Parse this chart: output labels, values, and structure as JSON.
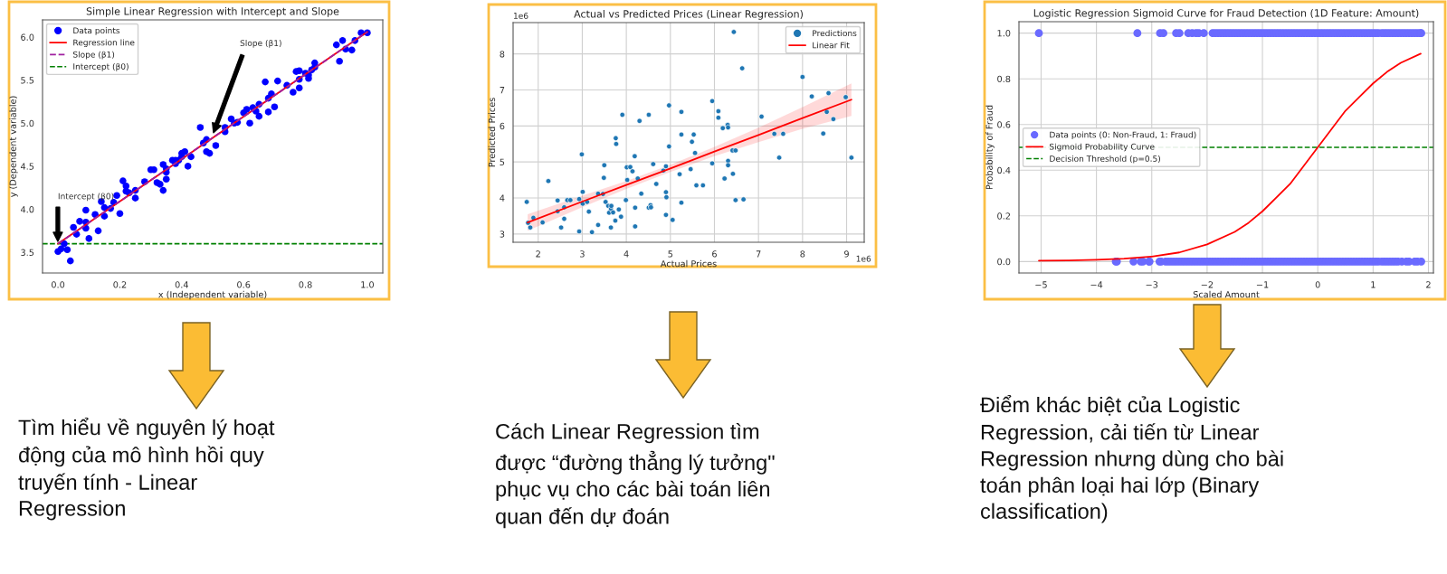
{
  "chart_data": [
    {
      "type": "scatter",
      "title": "Simple Linear Regression with Intercept and Slope",
      "xlabel": "x (Independent variable)",
      "ylabel": "y (Dependent variable)",
      "xlim": [
        -0.05,
        1.05
      ],
      "ylim": [
        3.26,
        6.2
      ],
      "xticks": [
        {
          "value": 0,
          "label": "0.0"
        },
        0.2,
        0.4,
        0.6,
        0.8,
        {
          "value": 1,
          "label": "1.0"
        }
      ],
      "yticks": [
        3.5,
        {
          "value": 4,
          "label": "4.0"
        },
        4.5,
        {
          "value": 5,
          "label": "5.0"
        },
        5.5,
        {
          "value": 6,
          "label": "6.0"
        }
      ],
      "grid": false,
      "legend": "top left",
      "series": [
        {
          "name": "Data points",
          "type": "scatter",
          "marker": "circle",
          "color": "#0000ff",
          "x": [
            0.0,
            0.01,
            0.02,
            0.03,
            0.04,
            0.05,
            0.06,
            0.07,
            0.09,
            0.09,
            0.09,
            0.1,
            0.12,
            0.13,
            0.14,
            0.15,
            0.15,
            0.17,
            0.18,
            0.19,
            0.2,
            0.21,
            0.22,
            0.22,
            0.23,
            0.25,
            0.25,
            0.28,
            0.3,
            0.31,
            0.32,
            0.33,
            0.34,
            0.34,
            0.35,
            0.35,
            0.35,
            0.37,
            0.38,
            0.38,
            0.39,
            0.4,
            0.41,
            0.4,
            0.42,
            0.43,
            0.46,
            0.47,
            0.48,
            0.48,
            0.49,
            0.51,
            0.54,
            0.54,
            0.56,
            0.57,
            0.58,
            0.6,
            0.61,
            0.62,
            0.63,
            0.64,
            0.65,
            0.65,
            0.67,
            0.68,
            0.68,
            0.69,
            0.7,
            0.71,
            0.74,
            0.76,
            0.77,
            0.78,
            0.78,
            0.78,
            0.8,
            0.81,
            0.81,
            0.82,
            0.83,
            0.83,
            0.9,
            0.91,
            0.92,
            0.93,
            0.95,
            0.96,
            0.98,
            1.0
          ],
          "values": [
            3.51,
            3.54,
            3.6,
            3.53,
            3.4,
            3.79,
            3.71,
            3.86,
            3.85,
            3.78,
            3.99,
            3.66,
            3.94,
            3.75,
            4.09,
            3.92,
            4.02,
            4.01,
            4.08,
            4.16,
            3.95,
            4.33,
            4.27,
            4.21,
            4.19,
            4.22,
            4.13,
            4.32,
            4.46,
            4.46,
            4.31,
            4.29,
            4.22,
            4.52,
            4.43,
            4.47,
            4.35,
            4.57,
            4.57,
            4.53,
            4.57,
            4.65,
            4.67,
            4.61,
            4.5,
            4.61,
            4.95,
            4.77,
            4.81,
            4.67,
            4.65,
            4.74,
            4.9,
            4.95,
            5.05,
            5.0,
            5.01,
            5.12,
            5.16,
            5.0,
            5.18,
            5.14,
            5.22,
            5.08,
            5.48,
            5.13,
            5.29,
            5.34,
            5.19,
            5.49,
            5.44,
            5.36,
            5.6,
            5.61,
            5.51,
            5.41,
            5.58,
            5.56,
            5.52,
            5.62,
            5.65,
            5.7,
            5.91,
            5.72,
            5.96,
            5.86,
            5.85,
            5.96,
            6.05,
            6.05
          ]
        },
        {
          "name": "Regression line",
          "type": "line",
          "line_style": "solid",
          "color": "#ff0000",
          "x": [
            0.0,
            1.0
          ],
          "values": [
            3.6,
            6.06
          ]
        },
        {
          "name": "Slope (β1)",
          "type": "line",
          "line_style": "dashed",
          "color": "#a020a0",
          "x": [
            0.0,
            1.0
          ],
          "values": [
            3.6,
            6.06
          ]
        }
      ],
      "ref_lines": [
        {
          "axis": "y",
          "value": 3.6,
          "label": "Intercept (β0)",
          "color": "#008000",
          "line_style": "dashed"
        }
      ],
      "annotations": [
        "Intercept (β0)",
        "Slope (β1)"
      ]
    },
    {
      "type": "scatter",
      "title": "Actual vs Predicted Prices (Linear Regression)",
      "xlabel": "Actual Prices",
      "ylabel": "Predicted Prices",
      "xlim": [
        1.43,
        9.4
      ],
      "ylim": [
        2.77,
        8.87
      ],
      "xticks": [
        2,
        3,
        4,
        5,
        6,
        7,
        8,
        9
      ],
      "yticks": [
        3,
        4,
        5,
        6,
        7,
        8
      ],
      "grid": true,
      "legend": "top right",
      "series": [
        {
          "name": "Predictions",
          "type": "scatter",
          "marker": "circle",
          "color": "#1f77b4",
          "x": [
            1.74,
            1.77,
            1.82,
            1.89,
            2.1,
            2.23,
            2.44,
            2.44,
            2.52,
            2.59,
            2.59,
            2.66,
            2.73,
            2.93,
            2.93,
            2.99,
            3.01,
            3.01,
            3.11,
            3.15,
            3.22,
            3.36,
            3.36,
            3.47,
            3.49,
            3.5,
            3.53,
            3.59,
            3.61,
            3.65,
            3.65,
            3.66,
            3.7,
            3.75,
            3.76,
            3.77,
            3.83,
            3.88,
            3.91,
            3.99,
            4.01,
            4.02,
            4.09,
            4.14,
            4.19,
            4.2,
            4.2,
            4.26,
            4.3,
            4.34,
            4.51,
            4.51,
            4.55,
            4.56,
            4.61,
            4.68,
            4.84,
            4.9,
            4.9,
            4.91,
            4.9,
            4.97,
            4.97,
            5.05,
            5.21,
            5.25,
            5.25,
            5.25,
            5.46,
            5.49,
            5.53,
            5.56,
            5.59,
            5.74,
            5.95,
            5.95,
            6.09,
            6.09,
            6.19,
            6.23,
            6.3,
            6.31,
            6.31,
            6.31,
            6.41,
            6.42,
            6.44,
            6.48,
            6.48,
            6.63,
            6.66,
            7.07,
            7.36,
            7.47,
            7.56,
            8.0,
            8.21,
            8.47,
            8.55,
            8.59,
            8.7,
            8.98,
            9.11
          ],
          "values": [
            3.89,
            3.31,
            3.18,
            3.45,
            3.32,
            4.47,
            3.93,
            3.63,
            3.18,
            3.42,
            3.74,
            3.94,
            3.94,
            3.97,
            3.07,
            5.21,
            4.17,
            3.84,
            3.89,
            3.62,
            3.05,
            3.25,
            4.12,
            4.11,
            4.56,
            4.91,
            3.89,
            3.78,
            3.59,
            3.7,
            3.18,
            3.78,
            3.6,
            3.37,
            5.66,
            5.5,
            3.68,
            3.48,
            6.31,
            3.94,
            4.85,
            4.5,
            4.86,
            4.74,
            5.16,
            3.73,
            3.21,
            4.54,
            6.14,
            4.12,
            3.73,
            6.31,
            3.8,
            3.74,
            4.94,
            4.39,
            4.76,
            4.88,
            4.16,
            4.02,
            3.53,
            6.57,
            5.43,
            3.39,
            4.66,
            6.39,
            5.76,
            3.87,
            4.8,
            5.56,
            5.76,
            5.25,
            4.35,
            4.35,
            6.69,
            4.96,
            6.41,
            6.23,
            5.94,
            4.54,
            6.03,
            5.96,
            5.03,
            4.91,
            5.32,
            4.67,
            8.61,
            5.32,
            3.94,
            7.6,
            3.96,
            6.26,
            5.78,
            5.12,
            5.78,
            7.36,
            6.82,
            5.79,
            6.39,
            6.91,
            6.19,
            6.8,
            5.12
          ]
        },
        {
          "name": "Linear Fit",
          "type": "line",
          "line_style": "solid",
          "color": "#ff0000",
          "x": [
            1.76,
            3,
            4,
            5,
            6,
            7,
            8,
            9.11
          ],
          "values": [
            3.32,
            3.9,
            4.36,
            4.82,
            5.29,
            5.75,
            6.22,
            6.73
          ],
          "lower": [
            3.09,
            3.74,
            4.25,
            4.72,
            5.16,
            5.55,
            5.92,
            6.28
          ],
          "upper": [
            3.55,
            4.06,
            4.47,
            4.92,
            5.42,
            5.95,
            6.52,
            7.18
          ]
        }
      ],
      "annotations": [
        "1e6",
        "1e6"
      ]
    },
    {
      "type": "scatter",
      "title": "Logistic Regression Sigmoid Curve for Fraud Detection (1D Feature: Amount)",
      "xlabel": "Scaled Amount",
      "ylabel": "Probability of Fraud",
      "xlim": [
        -5.4,
        2.09
      ],
      "ylim": [
        -0.05,
        1.05
      ],
      "xticks": [
        {
          "value": -5,
          "label": "−5"
        },
        {
          "value": -4,
          "label": "−4"
        },
        {
          "value": -3,
          "label": "−3"
        },
        {
          "value": -2,
          "label": "−2"
        },
        {
          "value": -1,
          "label": "−1"
        },
        0,
        1,
        2
      ],
      "yticks": [
        {
          "value": 0,
          "label": "0.0"
        },
        0.2,
        0.4,
        0.6,
        0.8,
        {
          "value": 1,
          "label": "1.0"
        }
      ],
      "grid": true,
      "legend": "left",
      "series": [
        {
          "name": "Data points (0: Non-Fraud, 1: Fraud)",
          "type": "scatter",
          "marker": "circle",
          "color": "#6a6aff",
          "x": [
            -5.04,
            -3.26,
            -2.85,
            -2.79,
            -2.56,
            -2.5,
            -2.34,
            -2.27,
            -2.2,
            -2.15,
            -2.06,
            -1.9,
            -1.85,
            -1.8,
            -1.75,
            -1.7,
            -1.65,
            -1.6,
            -1.55,
            -1.5,
            -1.45,
            -1.4,
            -1.35,
            -1.3,
            -1.25,
            -1.2,
            -1.15,
            -1.1,
            -1.05,
            -1,
            -0.95,
            -0.9,
            -0.85,
            -0.8,
            -0.75,
            -0.7,
            -0.65,
            -0.6,
            -0.55,
            -0.5,
            -0.45,
            -0.4,
            -0.35,
            -0.3,
            -0.25,
            -0.2,
            -0.15,
            -0.1,
            -0.05,
            0,
            0.05,
            0.1,
            0.15,
            0.2,
            0.25,
            0.3,
            0.35,
            0.4,
            0.45,
            0.5,
            0.55,
            0.6,
            0.65,
            0.7,
            0.75,
            0.8,
            0.85,
            0.9,
            0.95,
            1,
            1.05,
            1.1,
            1.15,
            1.2,
            1.25,
            1.3,
            1.35,
            1.4,
            1.45,
            1.5,
            1.55,
            1.6,
            1.65,
            1.7,
            1.75,
            1.8,
            1.85,
            1.87
          ],
          "values": [
            1,
            1,
            1,
            1,
            1,
            1,
            1,
            1,
            1,
            1,
            1,
            1,
            1,
            1,
            1,
            1,
            1,
            1,
            1,
            1,
            1,
            1,
            1,
            1,
            1,
            1,
            1,
            1,
            1,
            1,
            1,
            1,
            1,
            1,
            1,
            1,
            1,
            1,
            1,
            1,
            1,
            1,
            1,
            1,
            1,
            1,
            1,
            1,
            1,
            1,
            1,
            1,
            1,
            1,
            1,
            1,
            1,
            1,
            1,
            1,
            1,
            1,
            1,
            1,
            1,
            1,
            1,
            1,
            1,
            1,
            1,
            1,
            1,
            1,
            1,
            1,
            1,
            1,
            1,
            1,
            1,
            1,
            1,
            1,
            1,
            1,
            1,
            1
          ]
        },
        {
          "type": "scatter",
          "marker": "circle",
          "color": "#6a6aff",
          "x": [
            -3.65,
            -3.63,
            -3.33,
            -3.2,
            -3.16,
            -3.05,
            -3.04,
            -2.86,
            -2.83,
            -2.75,
            -2.7,
            -2.65,
            -2.6,
            -2.55,
            -2.5,
            -2.45,
            -2.4,
            -2.35,
            -2.3,
            -2.25,
            -2.2,
            -2.15,
            -2.1,
            -2.05,
            -2,
            -1.95,
            -1.9,
            -1.85,
            -1.8,
            -1.75,
            -1.7,
            -1.65,
            -1.6,
            -1.55,
            -1.5,
            -1.45,
            -1.4,
            -1.35,
            -1.3,
            -1.25,
            -1.2,
            -1.15,
            -1.1,
            -1.05,
            -1,
            -0.95,
            -0.9,
            -0.85,
            -0.8,
            -0.75,
            -0.7,
            -0.65,
            -0.6,
            -0.55,
            -0.5,
            -0.45,
            -0.4,
            -0.35,
            -0.3,
            -0.25,
            -0.2,
            -0.15,
            -0.1,
            -0.05,
            0,
            0.05,
            0.1,
            0.15,
            0.2,
            0.25,
            0.3,
            0.35,
            0.4,
            0.45,
            0.5,
            0.55,
            0.6,
            0.65,
            0.7,
            0.75,
            0.8,
            0.85,
            0.9,
            0.95,
            1,
            1.05,
            1.1,
            1.15,
            1.2,
            1.25,
            1.3,
            1.35,
            1.4,
            1.45,
            1.52,
            1.6,
            1.65,
            1.75,
            1.8,
            1.87
          ],
          "values": [
            0,
            0,
            0,
            0,
            0,
            0,
            0,
            0,
            0,
            0,
            0,
            0,
            0,
            0,
            0,
            0,
            0,
            0,
            0,
            0,
            0,
            0,
            0,
            0,
            0,
            0,
            0,
            0,
            0,
            0,
            0,
            0,
            0,
            0,
            0,
            0,
            0,
            0,
            0,
            0,
            0,
            0,
            0,
            0,
            0,
            0,
            0,
            0,
            0,
            0,
            0,
            0,
            0,
            0,
            0,
            0,
            0,
            0,
            0,
            0,
            0,
            0,
            0,
            0,
            0,
            0,
            0,
            0,
            0,
            0,
            0,
            0,
            0,
            0,
            0,
            0,
            0,
            0,
            0,
            0,
            0,
            0,
            0,
            0,
            0,
            0,
            0,
            0,
            0,
            0,
            0,
            0,
            0,
            0,
            0,
            0,
            0,
            0,
            0,
            0
          ]
        },
        {
          "name": "Sigmoid Probability Curve",
          "type": "line",
          "line_style": "solid",
          "color": "#ff0000",
          "x": [
            -5.04,
            -4.5,
            -4,
            -3.5,
            -3,
            -2.5,
            -2,
            -1.5,
            -1.25,
            -1,
            -0.75,
            -0.5,
            -0.25,
            0,
            0.25,
            0.5,
            0.75,
            1,
            1.25,
            1.5,
            1.86
          ],
          "values": [
            0.004,
            0.005,
            0.008,
            0.013,
            0.022,
            0.04,
            0.075,
            0.13,
            0.17,
            0.22,
            0.28,
            0.34,
            0.42,
            0.5,
            0.58,
            0.66,
            0.72,
            0.78,
            0.83,
            0.87,
            0.91
          ]
        }
      ],
      "ref_lines": [
        {
          "axis": "y",
          "value": 0.5,
          "label": "Decision Threshold (p=0.5)",
          "color": "#008000",
          "line_style": "dashed"
        }
      ]
    },
    {
      "type": "other",
      "annotations": [
        "Tìm hiểu về nguyên lý hoạt\nđộng của mô hình hồi quy\ntruyến tính - Linear\nRegression",
        "Cách Linear Regression tìm\nđược “đường thẳng lý tưởng\"\nphục vụ cho các bài toán liên\nquan đến dự đoán",
        "Điểm khác biệt của Logistic\nRegression, cải tiến từ Linear\nRegression nhưng dùng cho bài\ntoán phân loại hai lớp (Binary\nclassification)"
      ]
    }
  ]
}
